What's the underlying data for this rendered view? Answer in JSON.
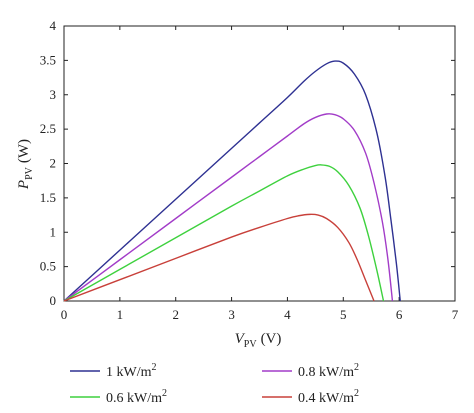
{
  "chart_data": {
    "type": "line",
    "xlabel": {
      "main": "V",
      "sub": "PV",
      "unit": "(V)"
    },
    "ylabel": {
      "main": "P",
      "sub": "PV",
      "unit": "(W)"
    },
    "xlim": [
      0,
      7
    ],
    "ylim": [
      0,
      4
    ],
    "xticks": [
      "0",
      "1",
      "2",
      "3",
      "4",
      "5",
      "6",
      "7"
    ],
    "yticks": [
      "0",
      "0.5",
      "1",
      "1.5",
      "2",
      "2.5",
      "3",
      "3.5",
      "4"
    ],
    "grid": false,
    "legend_position": "below",
    "series": [
      {
        "name": "1 kW/m²",
        "label_main": "1 kW/m",
        "label_sup": "2",
        "color": "#2e3192",
        "points": [
          [
            0,
            0
          ],
          [
            1,
            0.74
          ],
          [
            2,
            1.48
          ],
          [
            3,
            2.22
          ],
          [
            3.5,
            2.59
          ],
          [
            4,
            2.96
          ],
          [
            4.3,
            3.2
          ],
          [
            4.5,
            3.34
          ],
          [
            4.7,
            3.45
          ],
          [
            4.85,
            3.49
          ],
          [
            5.0,
            3.46
          ],
          [
            5.2,
            3.3
          ],
          [
            5.4,
            3.0
          ],
          [
            5.6,
            2.45
          ],
          [
            5.75,
            1.8
          ],
          [
            5.85,
            1.2
          ],
          [
            5.95,
            0.55
          ],
          [
            6.02,
            0.0
          ]
        ]
      },
      {
        "name": "0.8 kW/m²",
        "label_main": "0.8 kW/m",
        "label_sup": "2",
        "color": "#a23cc8",
        "points": [
          [
            0,
            0
          ],
          [
            1,
            0.6
          ],
          [
            2,
            1.2
          ],
          [
            3,
            1.8
          ],
          [
            3.5,
            2.1
          ],
          [
            4,
            2.4
          ],
          [
            4.3,
            2.58
          ],
          [
            4.5,
            2.67
          ],
          [
            4.7,
            2.72
          ],
          [
            4.85,
            2.71
          ],
          [
            5.0,
            2.65
          ],
          [
            5.2,
            2.48
          ],
          [
            5.4,
            2.15
          ],
          [
            5.55,
            1.72
          ],
          [
            5.7,
            1.15
          ],
          [
            5.8,
            0.6
          ],
          [
            5.88,
            0.0
          ]
        ]
      },
      {
        "name": "0.6 kW/m²",
        "label_main": "0.6 kW/m",
        "label_sup": "2",
        "color": "#3ed13e",
        "points": [
          [
            0,
            0
          ],
          [
            1,
            0.46
          ],
          [
            2,
            0.92
          ],
          [
            3,
            1.38
          ],
          [
            3.5,
            1.6
          ],
          [
            4,
            1.82
          ],
          [
            4.3,
            1.92
          ],
          [
            4.5,
            1.97
          ],
          [
            4.6,
            1.98
          ],
          [
            4.75,
            1.96
          ],
          [
            4.9,
            1.88
          ],
          [
            5.1,
            1.68
          ],
          [
            5.3,
            1.35
          ],
          [
            5.45,
            0.95
          ],
          [
            5.6,
            0.45
          ],
          [
            5.72,
            0.0
          ]
        ]
      },
      {
        "name": "0.4 kW/m²",
        "label_main": "0.4 kW/m",
        "label_sup": "2",
        "color": "#c8403a",
        "points": [
          [
            0,
            0
          ],
          [
            1,
            0.31
          ],
          [
            2,
            0.62
          ],
          [
            3,
            0.93
          ],
          [
            3.5,
            1.07
          ],
          [
            4,
            1.2
          ],
          [
            4.2,
            1.24
          ],
          [
            4.4,
            1.26
          ],
          [
            4.55,
            1.25
          ],
          [
            4.7,
            1.2
          ],
          [
            4.9,
            1.07
          ],
          [
            5.1,
            0.85
          ],
          [
            5.25,
            0.6
          ],
          [
            5.4,
            0.3
          ],
          [
            5.55,
            0.0
          ]
        ]
      }
    ]
  }
}
